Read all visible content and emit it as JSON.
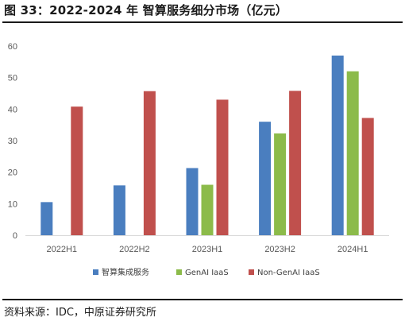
{
  "figure": {
    "title": "图 33：2022-2024 年  智算服务细分市场（亿元）",
    "source": "资料来源：IDC，中原证券研究所"
  },
  "chart_data": {
    "type": "bar",
    "title": "",
    "xlabel": "",
    "ylabel": "",
    "categories": [
      "2022H1",
      "2022H2",
      "2023H1",
      "2023H2",
      "2024H1"
    ],
    "series": [
      {
        "name": "智算集成服务",
        "color": "#4a7ebf",
        "values": [
          10.5,
          15.8,
          21.3,
          36.0,
          57.0
        ]
      },
      {
        "name": "GenAI IaaS",
        "color": "#8cbb4a",
        "values": [
          null,
          null,
          16.0,
          32.3,
          52.0
        ]
      },
      {
        "name": "Non-GenAI IaaS",
        "color": "#c0504d",
        "values": [
          40.8,
          45.7,
          43.0,
          45.8,
          37.2
        ]
      }
    ],
    "ylim": [
      0,
      60
    ],
    "yticks": [
      "0",
      "10",
      "20",
      "30",
      "40",
      "50",
      "60"
    ],
    "grid": false,
    "legend": "bottom"
  }
}
